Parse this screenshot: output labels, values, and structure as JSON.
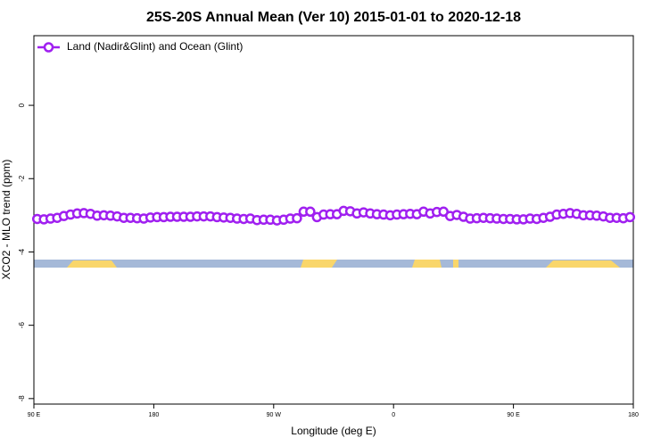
{
  "chart_data": {
    "type": "line",
    "title": "25S-20S Annual Mean (Ver 10)   2015-01-01 to 2020-12-18",
    "xlabel": "Longitude (deg E)",
    "ylabel": "XCO2 - MLO trend (ppm)",
    "x": [
      92.5,
      97.5,
      102.5,
      107.5,
      112.5,
      117.5,
      122.5,
      127.5,
      132.5,
      137.5,
      142.5,
      147.5,
      152.5,
      157.5,
      162.5,
      167.5,
      172.5,
      177.5,
      182.5,
      187.5,
      192.5,
      197.5,
      202.5,
      207.5,
      212.5,
      217.5,
      222.5,
      227.5,
      232.5,
      237.5,
      242.5,
      247.5,
      252.5,
      257.5,
      262.5,
      267.5,
      272.5,
      277.5,
      282.5,
      287.5,
      292.5,
      297.5,
      302.5,
      307.5,
      312.5,
      317.5,
      322.5,
      327.5,
      332.5,
      337.5,
      342.5,
      347.5,
      352.5,
      357.5,
      362.5,
      367.5,
      372.5,
      377.5,
      382.5,
      387.5,
      392.5,
      397.5,
      402.5,
      407.5,
      412.5,
      417.5,
      422.5,
      427.5,
      432.5,
      437.5,
      442.5,
      447.5,
      452.5,
      457.5,
      462.5,
      467.5,
      472.5,
      477.5,
      482.5,
      487.5,
      492.5,
      497.5,
      502.5,
      507.5,
      512.5,
      517.5,
      522.5,
      527.5,
      532.5,
      537.5
    ],
    "series": [
      {
        "name": "Land (Nadir&Glint) and Ocean (Glint)",
        "color": "#a020f0",
        "values": [
          -3.1,
          -3.11,
          -3.09,
          -3.07,
          -3.02,
          -2.98,
          -2.95,
          -2.94,
          -2.96,
          -3.01,
          -3.0,
          -3.01,
          -3.03,
          -3.07,
          -3.07,
          -3.08,
          -3.09,
          -3.06,
          -3.05,
          -3.05,
          -3.04,
          -3.04,
          -3.04,
          -3.04,
          -3.03,
          -3.03,
          -3.03,
          -3.05,
          -3.06,
          -3.07,
          -3.09,
          -3.1,
          -3.09,
          -3.13,
          -3.12,
          -3.12,
          -3.14,
          -3.12,
          -3.09,
          -3.08,
          -2.9,
          -2.9,
          -3.05,
          -2.98,
          -2.97,
          -2.97,
          -2.88,
          -2.89,
          -2.95,
          -2.92,
          -2.95,
          -2.97,
          -2.98,
          -3.0,
          -2.98,
          -2.97,
          -2.96,
          -2.97,
          -2.9,
          -2.95,
          -2.91,
          -2.9,
          -3.02,
          -2.99,
          -3.04,
          -3.09,
          -3.08,
          -3.07,
          -3.08,
          -3.09,
          -3.1,
          -3.1,
          -3.11,
          -3.11,
          -3.09,
          -3.1,
          -3.07,
          -3.04,
          -2.98,
          -2.96,
          -2.94,
          -2.96,
          -3.0,
          -3.0,
          -3.01,
          -3.03,
          -3.07,
          -3.07,
          -3.08,
          -3.05
        ]
      }
    ],
    "xlim": [
      90,
      540
    ],
    "xticks": [
      {
        "value": 90,
        "label": "90 E"
      },
      180,
      {
        "value": 270,
        "label": "90 W"
      },
      {
        "value": 360,
        "label": "0"
      },
      {
        "value": 450,
        "label": "90 E"
      },
      {
        "value": 540,
        "label": "180"
      }
    ],
    "ylim": [
      -8.15,
      1.9
    ],
    "yticks": [
      0,
      -2,
      -4,
      -6,
      -8
    ],
    "legend": "upper left"
  }
}
